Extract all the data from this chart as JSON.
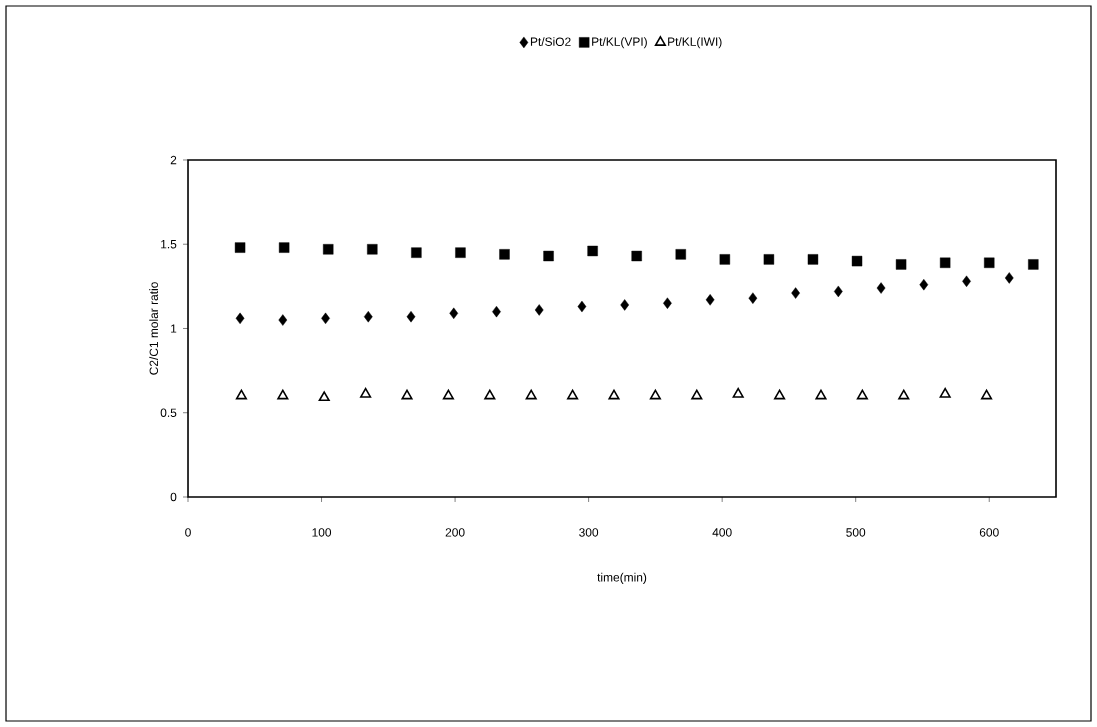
{
  "chart_data": {
    "type": "scatter",
    "xlabel": "time(min)",
    "ylabel": "C2/C1 molar ratio",
    "xlim": [
      0,
      650
    ],
    "ylim": [
      0,
      2
    ],
    "xticks": [
      0,
      100,
      200,
      300,
      400,
      500,
      600
    ],
    "yticks": [
      0,
      0.5,
      1,
      1.5,
      2
    ],
    "grid": false,
    "legend": "top",
    "series": [
      {
        "name": "Pt/SiO2",
        "color": "#000000",
        "marker": "diamond",
        "x": [
          39,
          71,
          103,
          135,
          167,
          199,
          231,
          263,
          295,
          327,
          359,
          391,
          423,
          455,
          487,
          519,
          551,
          583,
          615
        ],
        "values": [
          1.06,
          1.05,
          1.06,
          1.07,
          1.07,
          1.09,
          1.1,
          1.11,
          1.13,
          1.14,
          1.15,
          1.17,
          1.18,
          1.21,
          1.22,
          1.24,
          1.26,
          1.28,
          1.3
        ]
      },
      {
        "name": "Pt/KL(VPI)",
        "color": "#000000",
        "marker": "square",
        "x": [
          39,
          72,
          105,
          138,
          171,
          204,
          237,
          270,
          303,
          336,
          369,
          402,
          435,
          468,
          501,
          534,
          567,
          600,
          633
        ],
        "values": [
          1.48,
          1.48,
          1.47,
          1.47,
          1.45,
          1.45,
          1.44,
          1.43,
          1.46,
          1.43,
          1.44,
          1.41,
          1.41,
          1.41,
          1.4,
          1.38,
          1.39,
          1.39,
          1.38
        ]
      },
      {
        "name": "Pt/KL(IWI)",
        "color": "#000000",
        "marker": "triangle",
        "x": [
          40,
          71,
          102,
          133,
          164,
          195,
          226,
          257,
          288,
          319,
          350,
          381,
          412,
          443,
          474,
          505,
          536,
          567,
          598
        ],
        "values": [
          0.6,
          0.6,
          0.59,
          0.61,
          0.6,
          0.6,
          0.6,
          0.6,
          0.6,
          0.6,
          0.6,
          0.6,
          0.61,
          0.6,
          0.6,
          0.6,
          0.6,
          0.61,
          0.6
        ]
      }
    ]
  }
}
